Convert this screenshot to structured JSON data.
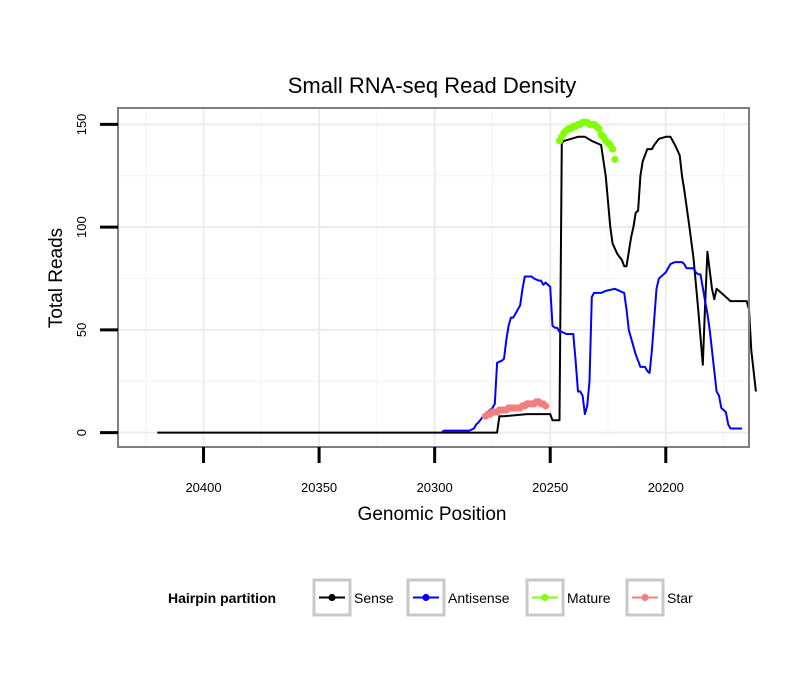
{
  "chart_data": {
    "type": "line",
    "title": "Small RNA-seq Read Density",
    "xlabel": "Genomic Position",
    "ylabel": "Total Reads",
    "x_reversed": true,
    "xlim": [
      20437,
      20164
    ],
    "ylim": [
      -7,
      158
    ],
    "xticks": [
      20400,
      20350,
      20300,
      20250,
      20200
    ],
    "xtick_labels": [
      "20400",
      "20350",
      "20300",
      "20250",
      "20200"
    ],
    "yticks": [
      0,
      50,
      100,
      150
    ],
    "ytick_labels": [
      "0",
      "50",
      "100",
      "150"
    ],
    "grid": true,
    "legend": {
      "title": "Hairpin partition",
      "position": "bottom",
      "entries": [
        {
          "name": "Sense",
          "color": "#000000"
        },
        {
          "name": "Antisense",
          "color": "#0000ff"
        },
        {
          "name": "Mature",
          "color": "#7fff00"
        },
        {
          "name": "Star",
          "color": "#f08080"
        }
      ]
    },
    "series": [
      {
        "name": "Sense",
        "color": "#000000",
        "style": "line",
        "points": [
          [
            20420,
            0
          ],
          [
            20274,
            0
          ],
          [
            20273,
            0
          ],
          [
            20272,
            8
          ],
          [
            20270,
            8
          ],
          [
            20260,
            9
          ],
          [
            20255,
            9
          ],
          [
            20250,
            9
          ],
          [
            20249,
            6
          ],
          [
            20246,
            6
          ],
          [
            20245,
            141
          ],
          [
            20244,
            142
          ],
          [
            20238,
            144
          ],
          [
            20235,
            144
          ],
          [
            20232,
            142
          ],
          [
            20228,
            140
          ],
          [
            20226,
            125
          ],
          [
            20224,
            100
          ],
          [
            20223,
            92
          ],
          [
            20221,
            87
          ],
          [
            20219,
            84
          ],
          [
            20218,
            81
          ],
          [
            20217,
            81
          ],
          [
            20215,
            95
          ],
          [
            20214,
            100
          ],
          [
            20213,
            107
          ],
          [
            20212,
            108
          ],
          [
            20211,
            125
          ],
          [
            20210,
            132
          ],
          [
            20209,
            135
          ],
          [
            20208,
            138
          ],
          [
            20206,
            138
          ],
          [
            20205,
            140
          ],
          [
            20203,
            143
          ],
          [
            20200,
            144
          ],
          [
            20198,
            144
          ],
          [
            20196,
            140
          ],
          [
            20194,
            135
          ],
          [
            20193,
            125
          ],
          [
            20192,
            118
          ],
          [
            20190,
            102
          ],
          [
            20188,
            85
          ],
          [
            20186,
            60
          ],
          [
            20184,
            33
          ],
          [
            20183,
            62
          ],
          [
            20182,
            88
          ],
          [
            20180,
            70
          ],
          [
            20179,
            65
          ],
          [
            20178,
            70
          ],
          [
            20176,
            68
          ],
          [
            20174,
            66
          ],
          [
            20172,
            64
          ],
          [
            20165,
            64
          ],
          [
            20164,
            60
          ],
          [
            20163,
            40
          ],
          [
            20162,
            30
          ],
          [
            20161,
            20
          ]
        ]
      },
      {
        "name": "Antisense",
        "color": "#0000ff",
        "style": "line",
        "points": [
          [
            20297,
            0
          ],
          [
            20296,
            1
          ],
          [
            20285,
            1
          ],
          [
            20283,
            2
          ],
          [
            20282,
            4
          ],
          [
            20281,
            5
          ],
          [
            20279,
            8
          ],
          [
            20277,
            10
          ],
          [
            20276,
            11
          ],
          [
            20275,
            12
          ],
          [
            20274,
            14
          ],
          [
            20273,
            34
          ],
          [
            20271,
            35
          ],
          [
            20270,
            36
          ],
          [
            20269,
            45
          ],
          [
            20268,
            52
          ],
          [
            20267,
            56
          ],
          [
            20266,
            56
          ],
          [
            20265,
            58
          ],
          [
            20264,
            60
          ],
          [
            20263,
            62
          ],
          [
            20262,
            70
          ],
          [
            20261,
            76
          ],
          [
            20258,
            76
          ],
          [
            20257,
            75
          ],
          [
            20255,
            74
          ],
          [
            20254,
            74
          ],
          [
            20253,
            72
          ],
          [
            20252,
            73
          ],
          [
            20250,
            71
          ],
          [
            20249,
            52
          ],
          [
            20248,
            51
          ],
          [
            20247,
            51
          ],
          [
            20246,
            49
          ],
          [
            20245,
            49
          ],
          [
            20243,
            48
          ],
          [
            20240,
            48
          ],
          [
            20239,
            35
          ],
          [
            20238,
            20
          ],
          [
            20237,
            20
          ],
          [
            20236,
            18
          ],
          [
            20235,
            9
          ],
          [
            20234,
            13
          ],
          [
            20233,
            25
          ],
          [
            20232,
            66
          ],
          [
            20231,
            68
          ],
          [
            20230,
            68
          ],
          [
            20228,
            68
          ],
          [
            20226,
            69
          ],
          [
            20222,
            70
          ],
          [
            20220,
            69
          ],
          [
            20218,
            68
          ],
          [
            20217,
            60
          ],
          [
            20216,
            50
          ],
          [
            20214,
            42
          ],
          [
            20213,
            38
          ],
          [
            20212,
            35
          ],
          [
            20211,
            32
          ],
          [
            20210,
            32
          ],
          [
            20209,
            32
          ],
          [
            20208,
            30
          ],
          [
            20207,
            29
          ],
          [
            20206,
            40
          ],
          [
            20205,
            55
          ],
          [
            20204,
            70
          ],
          [
            20203,
            75
          ],
          [
            20200,
            78
          ],
          [
            20198,
            82
          ],
          [
            20196,
            83
          ],
          [
            20193,
            83
          ],
          [
            20192,
            82
          ],
          [
            20191,
            80
          ],
          [
            20188,
            80
          ],
          [
            20187,
            78
          ],
          [
            20186,
            77
          ],
          [
            20185,
            77
          ],
          [
            20183,
            64
          ],
          [
            20182,
            58
          ],
          [
            20181,
            50
          ],
          [
            20180,
            40
          ],
          [
            20179,
            30
          ],
          [
            20178,
            20
          ],
          [
            20177,
            18
          ],
          [
            20176,
            12
          ],
          [
            20175,
            11
          ],
          [
            20174,
            10
          ],
          [
            20173,
            4
          ],
          [
            20172,
            2
          ],
          [
            20167,
            2
          ]
        ]
      },
      {
        "name": "Mature",
        "color": "#7fff00",
        "style": "points",
        "points": [
          [
            20246,
            142
          ],
          [
            20245,
            144
          ],
          [
            20244,
            146
          ],
          [
            20243,
            147
          ],
          [
            20242,
            148
          ],
          [
            20241,
            148
          ],
          [
            20240,
            149
          ],
          [
            20239,
            149
          ],
          [
            20238,
            150
          ],
          [
            20237,
            150
          ],
          [
            20236,
            151
          ],
          [
            20235,
            151
          ],
          [
            20234,
            151
          ],
          [
            20233,
            150
          ],
          [
            20232,
            150
          ],
          [
            20231,
            150
          ],
          [
            20230,
            149
          ],
          [
            20229,
            148
          ],
          [
            20228,
            145
          ],
          [
            20227,
            144
          ],
          [
            20226,
            142
          ],
          [
            20225,
            141
          ],
          [
            20224,
            140
          ],
          [
            20223,
            138
          ],
          [
            20222,
            133
          ]
        ]
      },
      {
        "name": "Star",
        "color": "#f08080",
        "style": "points",
        "points": [
          [
            20278,
            8
          ],
          [
            20277,
            9
          ],
          [
            20276,
            9
          ],
          [
            20275,
            10
          ],
          [
            20274,
            10
          ],
          [
            20273,
            10
          ],
          [
            20272,
            11
          ],
          [
            20271,
            11
          ],
          [
            20270,
            11
          ],
          [
            20269,
            11
          ],
          [
            20268,
            12
          ],
          [
            20267,
            12
          ],
          [
            20266,
            12
          ],
          [
            20265,
            12
          ],
          [
            20264,
            12
          ],
          [
            20263,
            12
          ],
          [
            20262,
            13
          ],
          [
            20261,
            13
          ],
          [
            20260,
            14
          ],
          [
            20259,
            14
          ],
          [
            20258,
            14
          ],
          [
            20257,
            14
          ],
          [
            20256,
            15
          ],
          [
            20255,
            15
          ],
          [
            20254,
            14
          ],
          [
            20253,
            14
          ],
          [
            20252,
            13
          ]
        ]
      }
    ]
  }
}
